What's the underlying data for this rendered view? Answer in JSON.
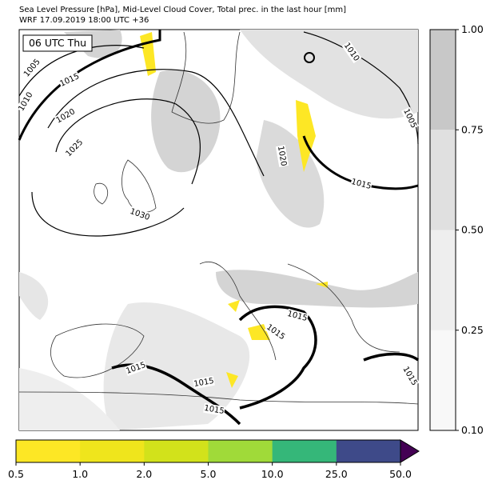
{
  "header": {
    "title": "Sea Level Pressure [hPa], Mid-Level Cloud Cover, Total prec. in the last hour [mm]",
    "subtitle": "WRF 17.09.2019 18:00 UTC +36"
  },
  "map": {
    "time_label": "06 UTC Thu",
    "isobar_labels": [
      "1005",
      "1010",
      "1015",
      "1020",
      "1025",
      "1030",
      "1010",
      "1005",
      "1020",
      "1015",
      "1015",
      "1015",
      "1015",
      "1015",
      "1015",
      "1015"
    ]
  },
  "cloud_colorbar": {
    "ticks": [
      {
        "value": 0.1,
        "label": "0.10"
      },
      {
        "value": 0.25,
        "label": "0.25"
      },
      {
        "value": 0.5,
        "label": "0.50"
      },
      {
        "value": 0.75,
        "label": "0.75"
      },
      {
        "value": 1,
        "label": "1.00"
      }
    ],
    "colors": [
      "#f8f8f8",
      "#eeeeee",
      "#e0e0e0",
      "#c8c8c8"
    ]
  },
  "precip_colorbar": {
    "ticks": [
      0.5,
      {
        "value": 1,
        "label": "1.0"
      },
      {
        "value": 2,
        "label": "2.0"
      },
      {
        "value": 5,
        "label": "5.0"
      },
      {
        "value": 10,
        "label": "10.0"
      },
      {
        "value": 25,
        "label": "25.0"
      },
      {
        "value": 50,
        "label": "50.0"
      }
    ],
    "colors": [
      "#fde725",
      "#efe51c",
      "#d2e21b",
      "#a0da39",
      "#35b779",
      "#3e4a89"
    ],
    "extend_color": "#440154"
  }
}
